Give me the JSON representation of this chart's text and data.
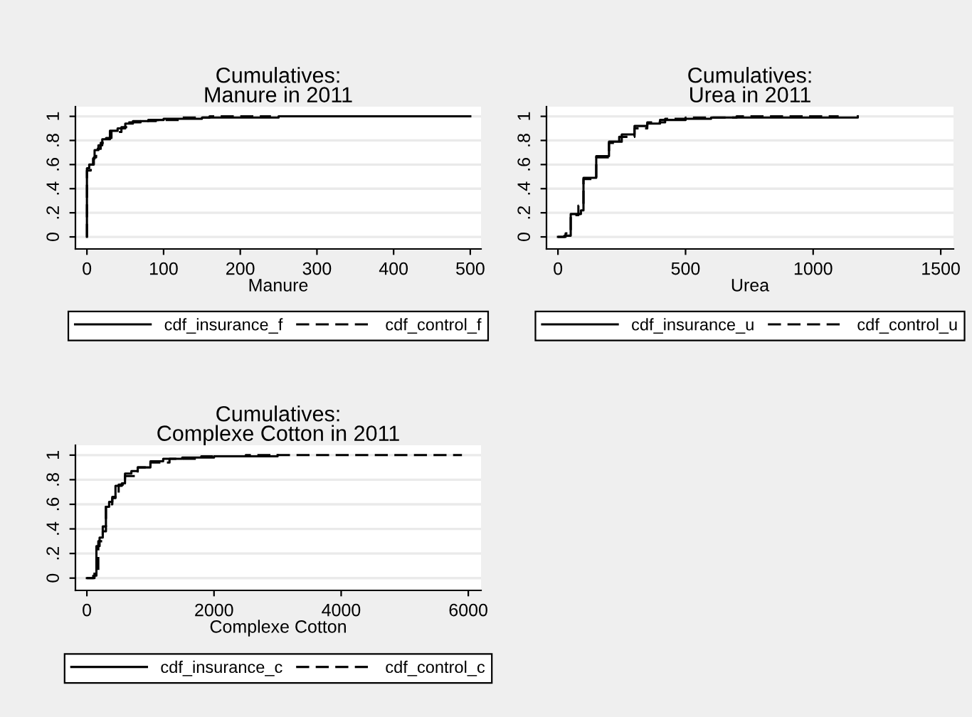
{
  "chart_data": [
    {
      "type": "step",
      "title": "Cumulatives:\nManure in 2011",
      "xlabel": "Manure",
      "xlim": [
        -15,
        514
      ],
      "xticks": [
        0,
        100,
        200,
        300,
        400,
        500
      ],
      "ylim": [
        -0.1,
        1.08
      ],
      "yticks": [
        {
          "value": 0,
          "label": "0"
        },
        {
          "value": 0.2,
          "label": ".2"
        },
        {
          "value": 0.4,
          "label": ".4"
        },
        {
          "value": 0.6,
          "label": ".6"
        },
        {
          "value": 0.8,
          "label": ".8"
        },
        {
          "value": 1,
          "label": "1"
        }
      ],
      "grid": "y",
      "legend": "bottom",
      "series": [
        {
          "name": "cdf_insurance_f",
          "color": "#000000",
          "line_style": "solid",
          "x": [
            0,
            0,
            3,
            8,
            10,
            15,
            20,
            30,
            40,
            50,
            60,
            80,
            100,
            150,
            250,
            500
          ],
          "values": [
            0,
            0.57,
            0.6,
            0.65,
            0.72,
            0.76,
            0.81,
            0.88,
            0.9,
            0.94,
            0.96,
            0.97,
            0.98,
            0.99,
            1,
            1
          ]
        },
        {
          "name": "cdf_control_f",
          "color": "#000000",
          "line_style": "dashed",
          "x": [
            0,
            0,
            5,
            9,
            12,
            18,
            25,
            32,
            45,
            55,
            70,
            90,
            120,
            160,
            240
          ],
          "values": [
            0,
            0.55,
            0.6,
            0.66,
            0.73,
            0.78,
            0.82,
            0.87,
            0.91,
            0.95,
            0.96,
            0.97,
            0.99,
            1,
            1
          ]
        }
      ]
    },
    {
      "type": "step",
      "title": "Cumulatives:\nUrea in 2011",
      "xlabel": "Urea",
      "xlim": [
        -45,
        1550
      ],
      "xticks": [
        0,
        500,
        1000,
        1500
      ],
      "ylim": [
        -0.1,
        1.08
      ],
      "yticks": [
        {
          "value": 0,
          "label": "0"
        },
        {
          "value": 0.2,
          "label": ".2"
        },
        {
          "value": 0.4,
          "label": ".4"
        },
        {
          "value": 0.6,
          "label": ".6"
        },
        {
          "value": 0.8,
          "label": ".8"
        },
        {
          "value": 1,
          "label": "1"
        }
      ],
      "grid": "y",
      "legend": "bottom",
      "series": [
        {
          "name": "cdf_insurance_u",
          "color": "#000000",
          "line_style": "solid",
          "x": [
            0,
            25,
            50,
            90,
            100,
            150,
            200,
            250,
            300,
            350,
            400,
            500,
            600,
            1175
          ],
          "values": [
            0,
            0.01,
            0.19,
            0.22,
            0.49,
            0.67,
            0.79,
            0.85,
            0.92,
            0.94,
            0.97,
            0.98,
            0.99,
            1
          ]
        },
        {
          "name": "cdf_control_u",
          "color": "#000000",
          "line_style": "dashed",
          "x": [
            0,
            30,
            50,
            80,
            100,
            150,
            200,
            240,
            300,
            350,
            420,
            500,
            700,
            1100
          ],
          "values": [
            0,
            0.03,
            0.18,
            0.26,
            0.48,
            0.66,
            0.78,
            0.83,
            0.9,
            0.95,
            0.98,
            0.99,
            1,
            1
          ]
        }
      ]
    },
    {
      "type": "step",
      "title": "Cumulatives:\nComplexe Cotton in 2011",
      "xlabel": "Complexe Cotton",
      "xlim": [
        -180,
        6200
      ],
      "xticks": [
        0,
        2000,
        4000,
        6000
      ],
      "ylim": [
        -0.1,
        1.08
      ],
      "yticks": [
        {
          "value": 0,
          "label": "0"
        },
        {
          "value": 0.2,
          "label": ".2"
        },
        {
          "value": 0.4,
          "label": ".4"
        },
        {
          "value": 0.6,
          "label": ".6"
        },
        {
          "value": 0.8,
          "label": ".8"
        },
        {
          "value": 1,
          "label": "1"
        }
      ],
      "grid": "y",
      "legend": "bottom",
      "series": [
        {
          "name": "cdf_insurance_c",
          "color": "#000000",
          "line_style": "solid",
          "x": [
            0,
            100,
            150,
            200,
            250,
            300,
            350,
            400,
            450,
            550,
            600,
            700,
            800,
            1000,
            1200,
            1500,
            2000,
            3000
          ],
          "values": [
            0,
            0.02,
            0.26,
            0.33,
            0.38,
            0.58,
            0.62,
            0.65,
            0.75,
            0.77,
            0.85,
            0.87,
            0.9,
            0.95,
            0.97,
            0.98,
            0.99,
            1
          ]
        },
        {
          "name": "cdf_control_c",
          "color": "#000000",
          "line_style": "dashed",
          "x": [
            0,
            120,
            180,
            250,
            300,
            400,
            500,
            600,
            800,
            1000,
            1300,
            1800,
            2500,
            5900
          ],
          "values": [
            0,
            0.05,
            0.3,
            0.42,
            0.6,
            0.66,
            0.76,
            0.83,
            0.9,
            0.94,
            0.97,
            0.99,
            1,
            1
          ]
        }
      ]
    }
  ]
}
